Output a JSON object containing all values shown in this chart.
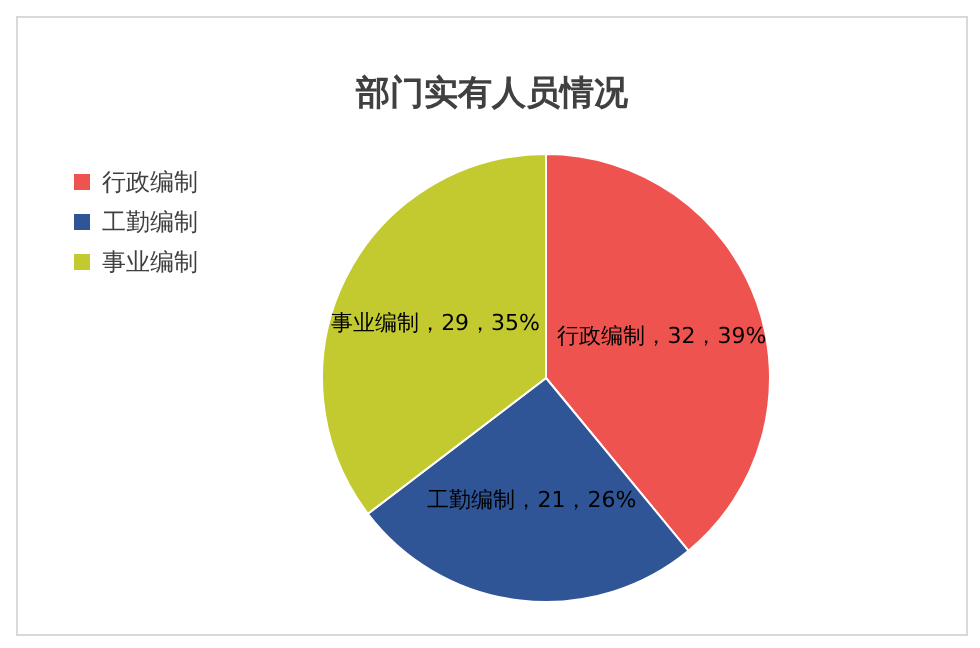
{
  "chart_data": {
    "type": "pie",
    "title": "部门实有人员情况",
    "categories": [
      "行政编制",
      "工勤编制",
      "事业编制"
    ],
    "values": [
      32,
      21,
      29
    ],
    "colors": [
      "#ef5350",
      "#2f5597",
      "#c3ca30"
    ],
    "value_labels": [
      "行政编制，32，39%",
      "工勤编制，21，26%",
      "事业编制，29，35%"
    ],
    "legend": "top left"
  }
}
